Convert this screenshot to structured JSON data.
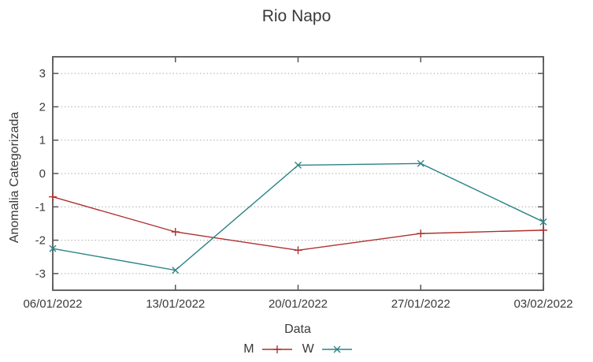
{
  "title": "Rio Napo",
  "chart_data": {
    "type": "line",
    "title": "Rio Napo",
    "xlabel": "Data",
    "ylabel": "Anomalia Categorizada",
    "categories": [
      "06/01/2022",
      "13/01/2022",
      "20/01/2022",
      "27/01/2022",
      "03/02/2022"
    ],
    "series": [
      {
        "name": "M",
        "marker": "plus",
        "color": "#ae2f2f",
        "values": [
          -0.7,
          -1.75,
          -2.3,
          -1.8,
          -1.7
        ]
      },
      {
        "name": "W",
        "marker": "x",
        "color": "#2a8387",
        "values": [
          -2.25,
          -2.9,
          0.25,
          0.3,
          -1.45
        ]
      }
    ],
    "ylim": [
      -3.5,
      3.5
    ],
    "yticks": [
      3,
      2,
      1,
      0,
      -1,
      -2,
      -3
    ],
    "grid": "horizontal-dotted",
    "legend_position": "bottom-center"
  },
  "style": {
    "background": "#ffffff",
    "text_color": "#3a3a3a",
    "border_color": "#565656",
    "grid_color": "#a9a9a9",
    "series_M_color": "#ae2f2f",
    "series_W_color": "#2a8387"
  }
}
